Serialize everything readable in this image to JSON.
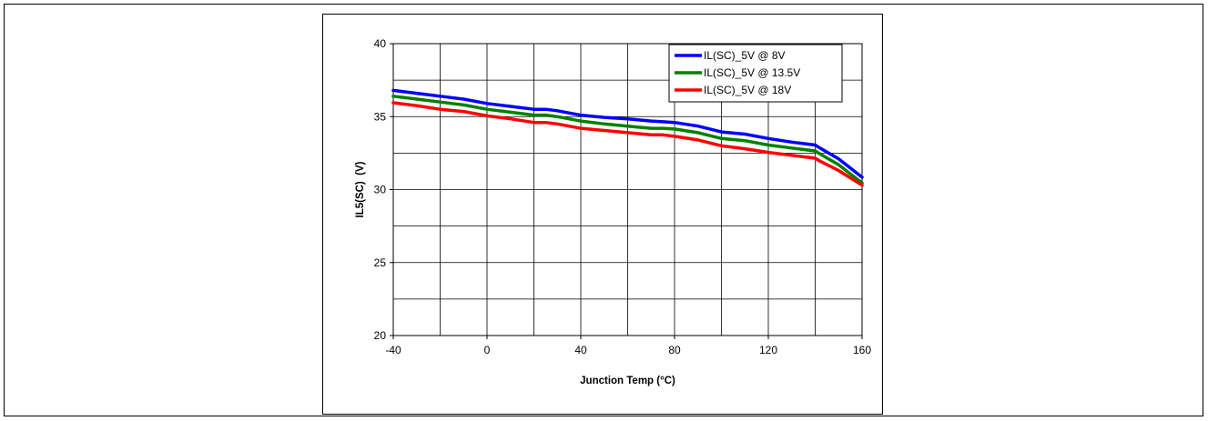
{
  "chart_data": {
    "type": "line",
    "title": "",
    "xlabel": "Junction Temp (°C)",
    "ylabel": "IL5(SC)  (V)",
    "xlim": [
      -40,
      160
    ],
    "ylim": [
      20,
      40
    ],
    "x_ticks": [
      -40,
      0,
      40,
      80,
      120,
      160
    ],
    "y_ticks": [
      20,
      25,
      30,
      35,
      40
    ],
    "grid": true,
    "legend_position": "top-right",
    "x": [
      -40,
      -30,
      -20,
      -10,
      0,
      10,
      20,
      25,
      30,
      40,
      50,
      60,
      70,
      75,
      80,
      90,
      100,
      110,
      120,
      130,
      140,
      142,
      150,
      160
    ],
    "series": [
      {
        "name": "IL(SC)_5V @ 8V",
        "color": "#0000ff",
        "values": [
          36.8,
          36.6,
          36.4,
          36.2,
          35.9,
          35.7,
          35.5,
          35.5,
          35.4,
          35.1,
          34.95,
          34.85,
          34.7,
          34.65,
          34.6,
          34.35,
          33.95,
          33.8,
          33.5,
          33.25,
          33.05,
          32.85,
          32.1,
          30.85
        ]
      },
      {
        "name": "IL(SC)_5V @ 13.5V",
        "color": "#008000",
        "values": [
          36.4,
          36.2,
          36.0,
          35.8,
          35.5,
          35.3,
          35.1,
          35.1,
          35.0,
          34.7,
          34.5,
          34.35,
          34.2,
          34.2,
          34.15,
          33.9,
          33.5,
          33.35,
          33.05,
          32.85,
          32.65,
          32.45,
          31.7,
          30.45
        ]
      },
      {
        "name": "IL(SC)_5V @ 18V",
        "color": "#ff0000",
        "values": [
          35.95,
          35.75,
          35.5,
          35.35,
          35.05,
          34.85,
          34.6,
          34.6,
          34.5,
          34.2,
          34.05,
          33.9,
          33.75,
          33.75,
          33.65,
          33.4,
          33.0,
          32.8,
          32.55,
          32.35,
          32.15,
          31.95,
          31.3,
          30.3
        ]
      }
    ]
  }
}
